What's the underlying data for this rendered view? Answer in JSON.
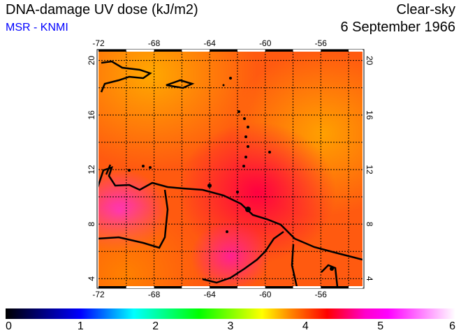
{
  "header": {
    "title": "DNA-damage UV dose (kJ/m2)",
    "source": "MSR - KNMI",
    "mode": "Clear-sky",
    "date": "6 September 1966"
  },
  "map": {
    "lon_labels": [
      "-72",
      "-68",
      "-64",
      "-60",
      "-56"
    ],
    "lat_labels": [
      "20",
      "16",
      "12",
      "8",
      "4"
    ],
    "lon_range": [
      -72,
      -53
    ],
    "lat_range": [
      3.4,
      20.7
    ]
  },
  "colorbar": {
    "labels": [
      "0",
      "1",
      "2",
      "3",
      "4",
      "5",
      "6"
    ],
    "min": 0,
    "max": 6
  }
}
